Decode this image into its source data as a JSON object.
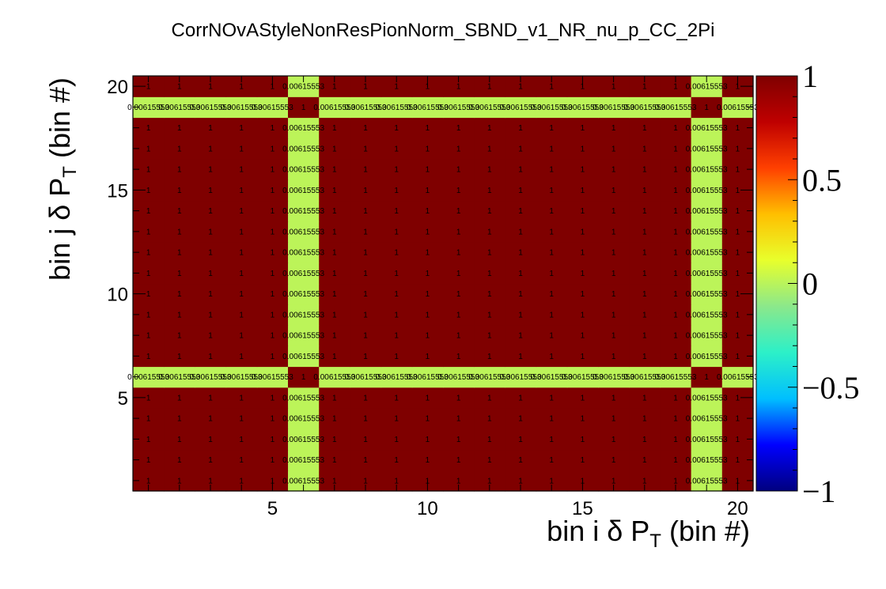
{
  "chart_data": {
    "type": "heatmap",
    "title": "CorrNOvAStyleNonResPionNorm_SBND_v1_NR_nu_p_CC_2Pi",
    "xlabel": {
      "main": "bin i δ P",
      "sub": "T",
      "suffix": " (bin #)"
    },
    "ylabel": {
      "main": "bin j δ P",
      "sub": "T",
      "suffix": " (bin #)"
    },
    "nbins_x": 20,
    "nbins_y": 20,
    "xlim": [
      0.5,
      20.5
    ],
    "ylim": [
      0.5,
      20.5
    ],
    "x_ticks": [
      5,
      10,
      15,
      20
    ],
    "y_ticks": [
      5,
      10,
      15,
      20
    ],
    "value_range": [
      -1,
      1
    ],
    "colorbar_ticks": [
      "1",
      "0.5",
      "0",
      "−0.5",
      "−1"
    ],
    "colorbar_tick_values": [
      1,
      0.5,
      0,
      -0.5,
      -1
    ],
    "colormap": [
      "#00007f",
      "#0000ff",
      "#00bfff",
      "#2cf0c8",
      "#8be88b",
      "#e8ff2c",
      "#ffbf00",
      "#ff4000",
      "#bf0000",
      "#7f0000"
    ],
    "low_bins": [
      6,
      19
    ],
    "high_value": 1,
    "high_label": "1",
    "low_value": 0.00615553,
    "low_label": "0.00615553",
    "cross_label": "1"
  }
}
